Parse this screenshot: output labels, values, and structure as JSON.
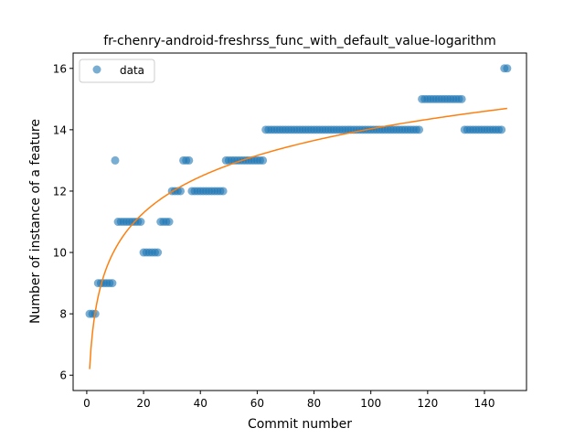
{
  "chart_data": {
    "type": "scatter",
    "title": "fr-chenry-android-freshrss_func_with_default_value-logarithm",
    "xlabel": "Commit number",
    "ylabel": "Number of instance of a feature",
    "xlim": [
      -4.8,
      154.8
    ],
    "ylim": [
      5.5,
      16.5
    ],
    "xticks": [
      0,
      20,
      40,
      60,
      80,
      100,
      120,
      140
    ],
    "yticks": [
      6,
      8,
      10,
      12,
      14,
      16
    ],
    "grid": false,
    "legend": {
      "position": "top-left",
      "entries": [
        "data"
      ]
    },
    "colors": {
      "data": "#1f77b4",
      "fit": "#ff7f0e"
    },
    "series": [
      {
        "name": "data",
        "kind": "scatter",
        "runs": [
          {
            "x0": 1,
            "x1": 3,
            "y": 8
          },
          {
            "x0": 4,
            "x1": 9,
            "y": 9
          },
          {
            "x0": 10,
            "x1": 10,
            "y": 13
          },
          {
            "x0": 11,
            "x1": 19,
            "y": 11
          },
          {
            "x0": 20,
            "x1": 25,
            "y": 10
          },
          {
            "x0": 26,
            "x1": 29,
            "y": 11
          },
          {
            "x0": 30,
            "x1": 33,
            "y": 12
          },
          {
            "x0": 34,
            "x1": 36,
            "y": 13
          },
          {
            "x0": 37,
            "x1": 48,
            "y": 12
          },
          {
            "x0": 49,
            "x1": 62,
            "y": 13
          },
          {
            "x0": 63,
            "x1": 117,
            "y": 14
          },
          {
            "x0": 118,
            "x1": 132,
            "y": 15
          },
          {
            "x0": 133,
            "x1": 146,
            "y": 14
          },
          {
            "x0": 147,
            "x1": 148,
            "y": 16
          }
        ]
      },
      {
        "kind": "line",
        "model": "logarithm",
        "a": 6.2,
        "b": 1.7,
        "x_range": [
          1,
          148
        ]
      }
    ]
  }
}
